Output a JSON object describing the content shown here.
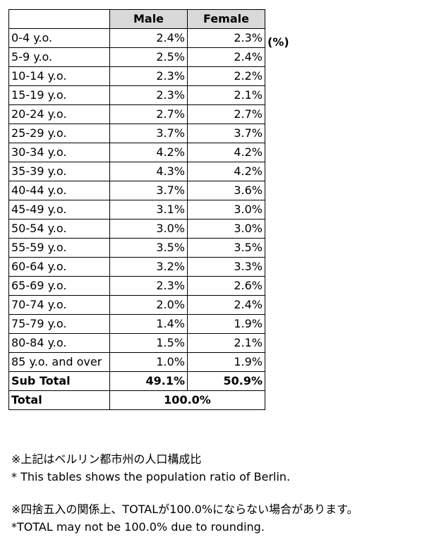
{
  "table": {
    "headers": {
      "male": "Male",
      "female": "Female"
    },
    "unit": "(%)",
    "rows": [
      {
        "age": "0-4 y.o.",
        "male": "2.4%",
        "female": "2.3%"
      },
      {
        "age": "5-9 y.o.",
        "male": "2.5%",
        "female": "2.4%"
      },
      {
        "age": "10-14 y.o.",
        "male": "2.3%",
        "female": "2.2%"
      },
      {
        "age": "15-19 y.o.",
        "male": "2.3%",
        "female": "2.1%"
      },
      {
        "age": "20-24 y.o.",
        "male": "2.7%",
        "female": "2.7%"
      },
      {
        "age": "25-29 y.o.",
        "male": "3.7%",
        "female": "3.7%"
      },
      {
        "age": "30-34 y.o.",
        "male": "4.2%",
        "female": "4.2%"
      },
      {
        "age": "35-39 y.o.",
        "male": "4.3%",
        "female": "4.2%"
      },
      {
        "age": "40-44 y.o.",
        "male": "3.7%",
        "female": "3.6%"
      },
      {
        "age": "45-49 y.o.",
        "male": "3.1%",
        "female": "3.0%"
      },
      {
        "age": "50-54 y.o.",
        "male": "3.0%",
        "female": "3.0%"
      },
      {
        "age": "55-59 y.o.",
        "male": "3.5%",
        "female": "3.5%"
      },
      {
        "age": "60-64 y.o.",
        "male": "3.2%",
        "female": "3.3%"
      },
      {
        "age": "65-69 y.o.",
        "male": "2.3%",
        "female": "2.6%"
      },
      {
        "age": "70-74 y.o.",
        "male": "2.0%",
        "female": "2.4%"
      },
      {
        "age": "75-79 y.o.",
        "male": "1.4%",
        "female": "1.9%"
      },
      {
        "age": "80-84 y.o.",
        "male": "1.5%",
        "female": "2.1%"
      },
      {
        "age": "85 y.o. and over",
        "male": "1.0%",
        "female": "1.9%"
      }
    ],
    "subtotal": {
      "label": "Sub Total",
      "male": "49.1%",
      "female": "50.9%"
    },
    "total": {
      "label": "Total",
      "value": "100.0%"
    }
  },
  "notes": {
    "source_ja": "※上記はベルリン都市州の人口構成比",
    "source_en": "* This tables shows the population ratio of Berlin.",
    "rounding_ja": "※四捨五入の関係上、TOTALが100.0%にならない場合があります。",
    "rounding_en": "*TOTAL may not be 100.0% due to rounding."
  }
}
